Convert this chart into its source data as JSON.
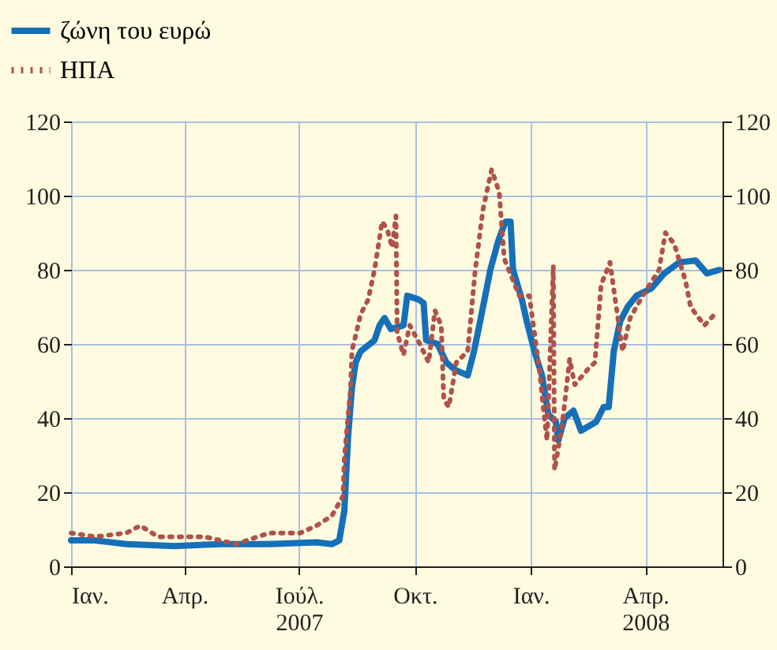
{
  "chart_data": {
    "type": "line",
    "x": [
      "2007-01-01",
      "2007-01-20",
      "2007-02-14",
      "2007-03-24",
      "2007-04-30",
      "2007-06-07",
      "2007-07-15",
      "2007-07-27",
      "2007-08-02",
      "2007-08-06",
      "2007-08-09",
      "2007-08-12",
      "2007-08-15",
      "2007-08-19",
      "2007-08-30",
      "2007-09-03",
      "2007-09-07",
      "2007-09-12",
      "2007-09-22",
      "2007-09-25",
      "2007-10-04",
      "2007-10-08",
      "2007-10-10",
      "2007-10-19",
      "2007-10-26",
      "2007-11-02",
      "2007-11-12",
      "2007-11-17",
      "2007-11-23",
      "2007-11-30",
      "2007-12-06",
      "2007-12-12",
      "2007-12-16",
      "2007-12-18",
      "2007-12-25",
      "2007-12-29",
      "2008-01-04",
      "2008-01-10",
      "2008-01-15",
      "2008-01-21",
      "2008-01-23",
      "2008-01-28",
      "2008-02-04",
      "2008-02-10",
      "2008-02-22",
      "2008-02-28",
      "2008-03-03",
      "2008-03-07",
      "2008-03-12",
      "2008-03-18",
      "2008-03-25",
      "2008-04-06",
      "2008-04-16",
      "2008-04-28",
      "2008-05-11",
      "2008-05-20",
      "2008-05-30"
    ],
    "series": [
      {
        "name": "ζώνη του ευρώ",
        "color": "#1570b8",
        "line_style": "solid",
        "values": [
          7,
          7,
          6,
          5.5,
          6,
          6,
          6.5,
          6,
          7,
          15,
          35,
          48,
          55,
          58,
          61,
          65,
          67,
          64,
          65,
          73,
          72,
          71,
          61,
          60,
          55,
          53,
          51.5,
          58,
          68,
          80,
          87.5,
          93,
          93,
          80,
          72,
          66,
          58,
          51.5,
          41,
          39,
          34,
          40,
          42,
          36.6,
          39,
          43,
          43,
          58,
          66,
          70,
          73,
          75,
          79,
          82,
          82.5,
          79,
          80
        ]
      },
      {
        "name": "ΗΠΑ",
        "color": "#b0524a",
        "line_style": "dotted",
        "x": [
          "2007-01-01",
          "2007-01-20",
          "2007-02-14",
          "2007-02-25",
          "2007-03-11",
          "2007-04-17",
          "2007-05-12",
          "2007-06-07",
          "2007-07-02",
          "2007-07-15",
          "2007-07-27",
          "2007-08-05",
          "2007-08-06",
          "2007-08-11",
          "2007-08-12",
          "2007-08-19",
          "2007-08-25",
          "2007-08-30",
          "2007-09-05",
          "2007-09-09",
          "2007-09-13",
          "2007-09-16",
          "2007-09-17",
          "2007-09-22",
          "2007-09-27",
          "2007-10-05",
          "2007-10-12",
          "2007-10-17",
          "2007-10-22",
          "2007-10-24",
          "2007-10-28",
          "2007-11-03",
          "2007-11-12",
          "2007-11-18",
          "2007-11-24",
          "2007-12-01",
          "2007-12-07",
          "2007-12-11",
          "2007-12-17",
          "2007-12-23",
          "2007-12-31",
          "2008-01-08",
          "2008-01-11",
          "2008-01-14",
          "2008-01-19",
          "2008-01-20",
          "2008-01-26",
          "2008-02-01",
          "2008-02-05",
          "2008-02-15",
          "2008-02-21",
          "2008-02-26",
          "2008-03-04",
          "2008-03-14",
          "2008-03-20",
          "2008-03-30",
          "2008-04-12",
          "2008-04-17",
          "2008-04-24",
          "2008-05-03",
          "2008-05-07",
          "2008-05-18",
          "2008-05-26"
        ],
        "values": [
          9,
          8,
          9,
          11,
          8,
          8,
          6,
          9,
          9,
          11,
          13.6,
          19,
          29,
          48,
          58,
          68,
          72,
          80,
          93,
          91,
          86,
          94.5,
          63,
          57,
          65,
          60,
          55,
          69,
          65,
          45,
          43,
          55,
          58,
          80,
          96,
          107,
          101,
          83,
          78,
          73,
          73,
          53,
          43,
          34,
          81,
          26,
          38,
          56,
          49,
          53,
          55,
          76,
          82,
          58,
          67,
          73,
          80,
          90,
          87,
          77,
          70,
          65,
          68
        ]
      }
    ],
    "xlim": [
      "2007-01-01",
      "2008-06-02"
    ],
    "xticks": [
      {
        "value": "2007-01-01",
        "label": "Ιαν."
      },
      {
        "value": "2007-04-01",
        "label": "Απρ."
      },
      {
        "value": "2007-07-01",
        "label": "Ιούλ.\n2007"
      },
      {
        "value": "2007-10-01",
        "label": "Οκτ."
      },
      {
        "value": "2008-01-01",
        "label": "Ιαν."
      },
      {
        "value": "2008-04-01",
        "label": "Απρ.\n2008"
      }
    ],
    "ylim": [
      0,
      120
    ],
    "yticks": [
      0,
      20,
      40,
      60,
      80,
      100,
      120
    ],
    "y2lim": [
      0,
      120
    ],
    "y2ticks": [
      0,
      20,
      40,
      60,
      80,
      100,
      120
    ],
    "grid": true,
    "legend": "top left"
  }
}
